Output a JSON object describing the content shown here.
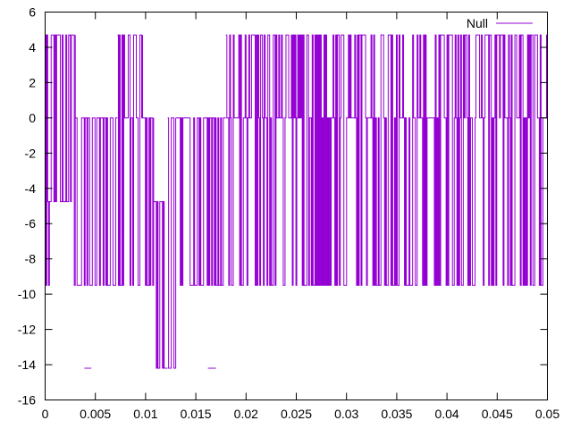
{
  "chart_data": {
    "type": "line",
    "title": "",
    "xlabel": "",
    "ylabel": "",
    "xlim": [
      0,
      0.05
    ],
    "ylim": [
      -16,
      6
    ],
    "x_ticks": [
      0,
      0.005,
      0.01,
      0.015,
      0.02,
      0.025,
      0.03,
      0.035,
      0.04,
      0.045,
      0.05
    ],
    "x_tick_labels": [
      "0",
      "0.005",
      "0.01",
      "0.015",
      "0.02",
      "0.025",
      "0.03",
      "0.035",
      "0.04",
      "0.045",
      "0.05"
    ],
    "y_ticks": [
      6,
      4,
      2,
      0,
      -2,
      -4,
      -6,
      -8,
      -10,
      -12,
      -14,
      -16
    ],
    "y_tick_labels": [
      "6",
      "4",
      "2",
      "0",
      "-2",
      "-4",
      "-6",
      "-8",
      "-10",
      "-12",
      "-14",
      "-16"
    ],
    "grid": false,
    "legend_position": "top-right",
    "series": [
      {
        "name": "Null",
        "color": "#9400d3",
        "levels": [
          4.7,
          0,
          -4.75,
          -9.5,
          -14.2
        ],
        "segments": [
          {
            "x_start": 0.0,
            "x_end": 0.0006,
            "levels": [
              4.7,
              -4.75,
              -9.5
            ]
          },
          {
            "x_start": 0.0006,
            "x_end": 0.0027,
            "levels": [
              4.7,
              -4.75
            ]
          },
          {
            "x_start": 0.0027,
            "x_end": 0.003,
            "levels": [
              4.7,
              -9.5
            ]
          },
          {
            "x_start": 0.003,
            "x_end": 0.0072,
            "levels": [
              0,
              -9.5
            ]
          },
          {
            "x_start": 0.0039,
            "x_end": 0.0046,
            "levels": [
              -14.2
            ]
          },
          {
            "x_start": 0.0072,
            "x_end": 0.0097,
            "levels": [
              4.7,
              0,
              -9.5
            ]
          },
          {
            "x_start": 0.0097,
            "x_end": 0.0108,
            "levels": [
              0,
              -9.5
            ]
          },
          {
            "x_start": 0.0108,
            "x_end": 0.0122,
            "levels": [
              -4.75,
              -14.2
            ]
          },
          {
            "x_start": 0.0122,
            "x_end": 0.013,
            "levels": [
              0,
              -14.2
            ]
          },
          {
            "x_start": 0.013,
            "x_end": 0.018,
            "levels": [
              0,
              -9.5
            ]
          },
          {
            "x_start": 0.0162,
            "x_end": 0.017,
            "levels": [
              -14.2
            ]
          },
          {
            "x_start": 0.018,
            "x_end": 0.021,
            "levels": [
              4.7,
              0,
              -9.5
            ]
          },
          {
            "x_start": 0.021,
            "x_end": 0.05,
            "levels": [
              4.7,
              0,
              -9.5
            ]
          }
        ]
      }
    ]
  }
}
